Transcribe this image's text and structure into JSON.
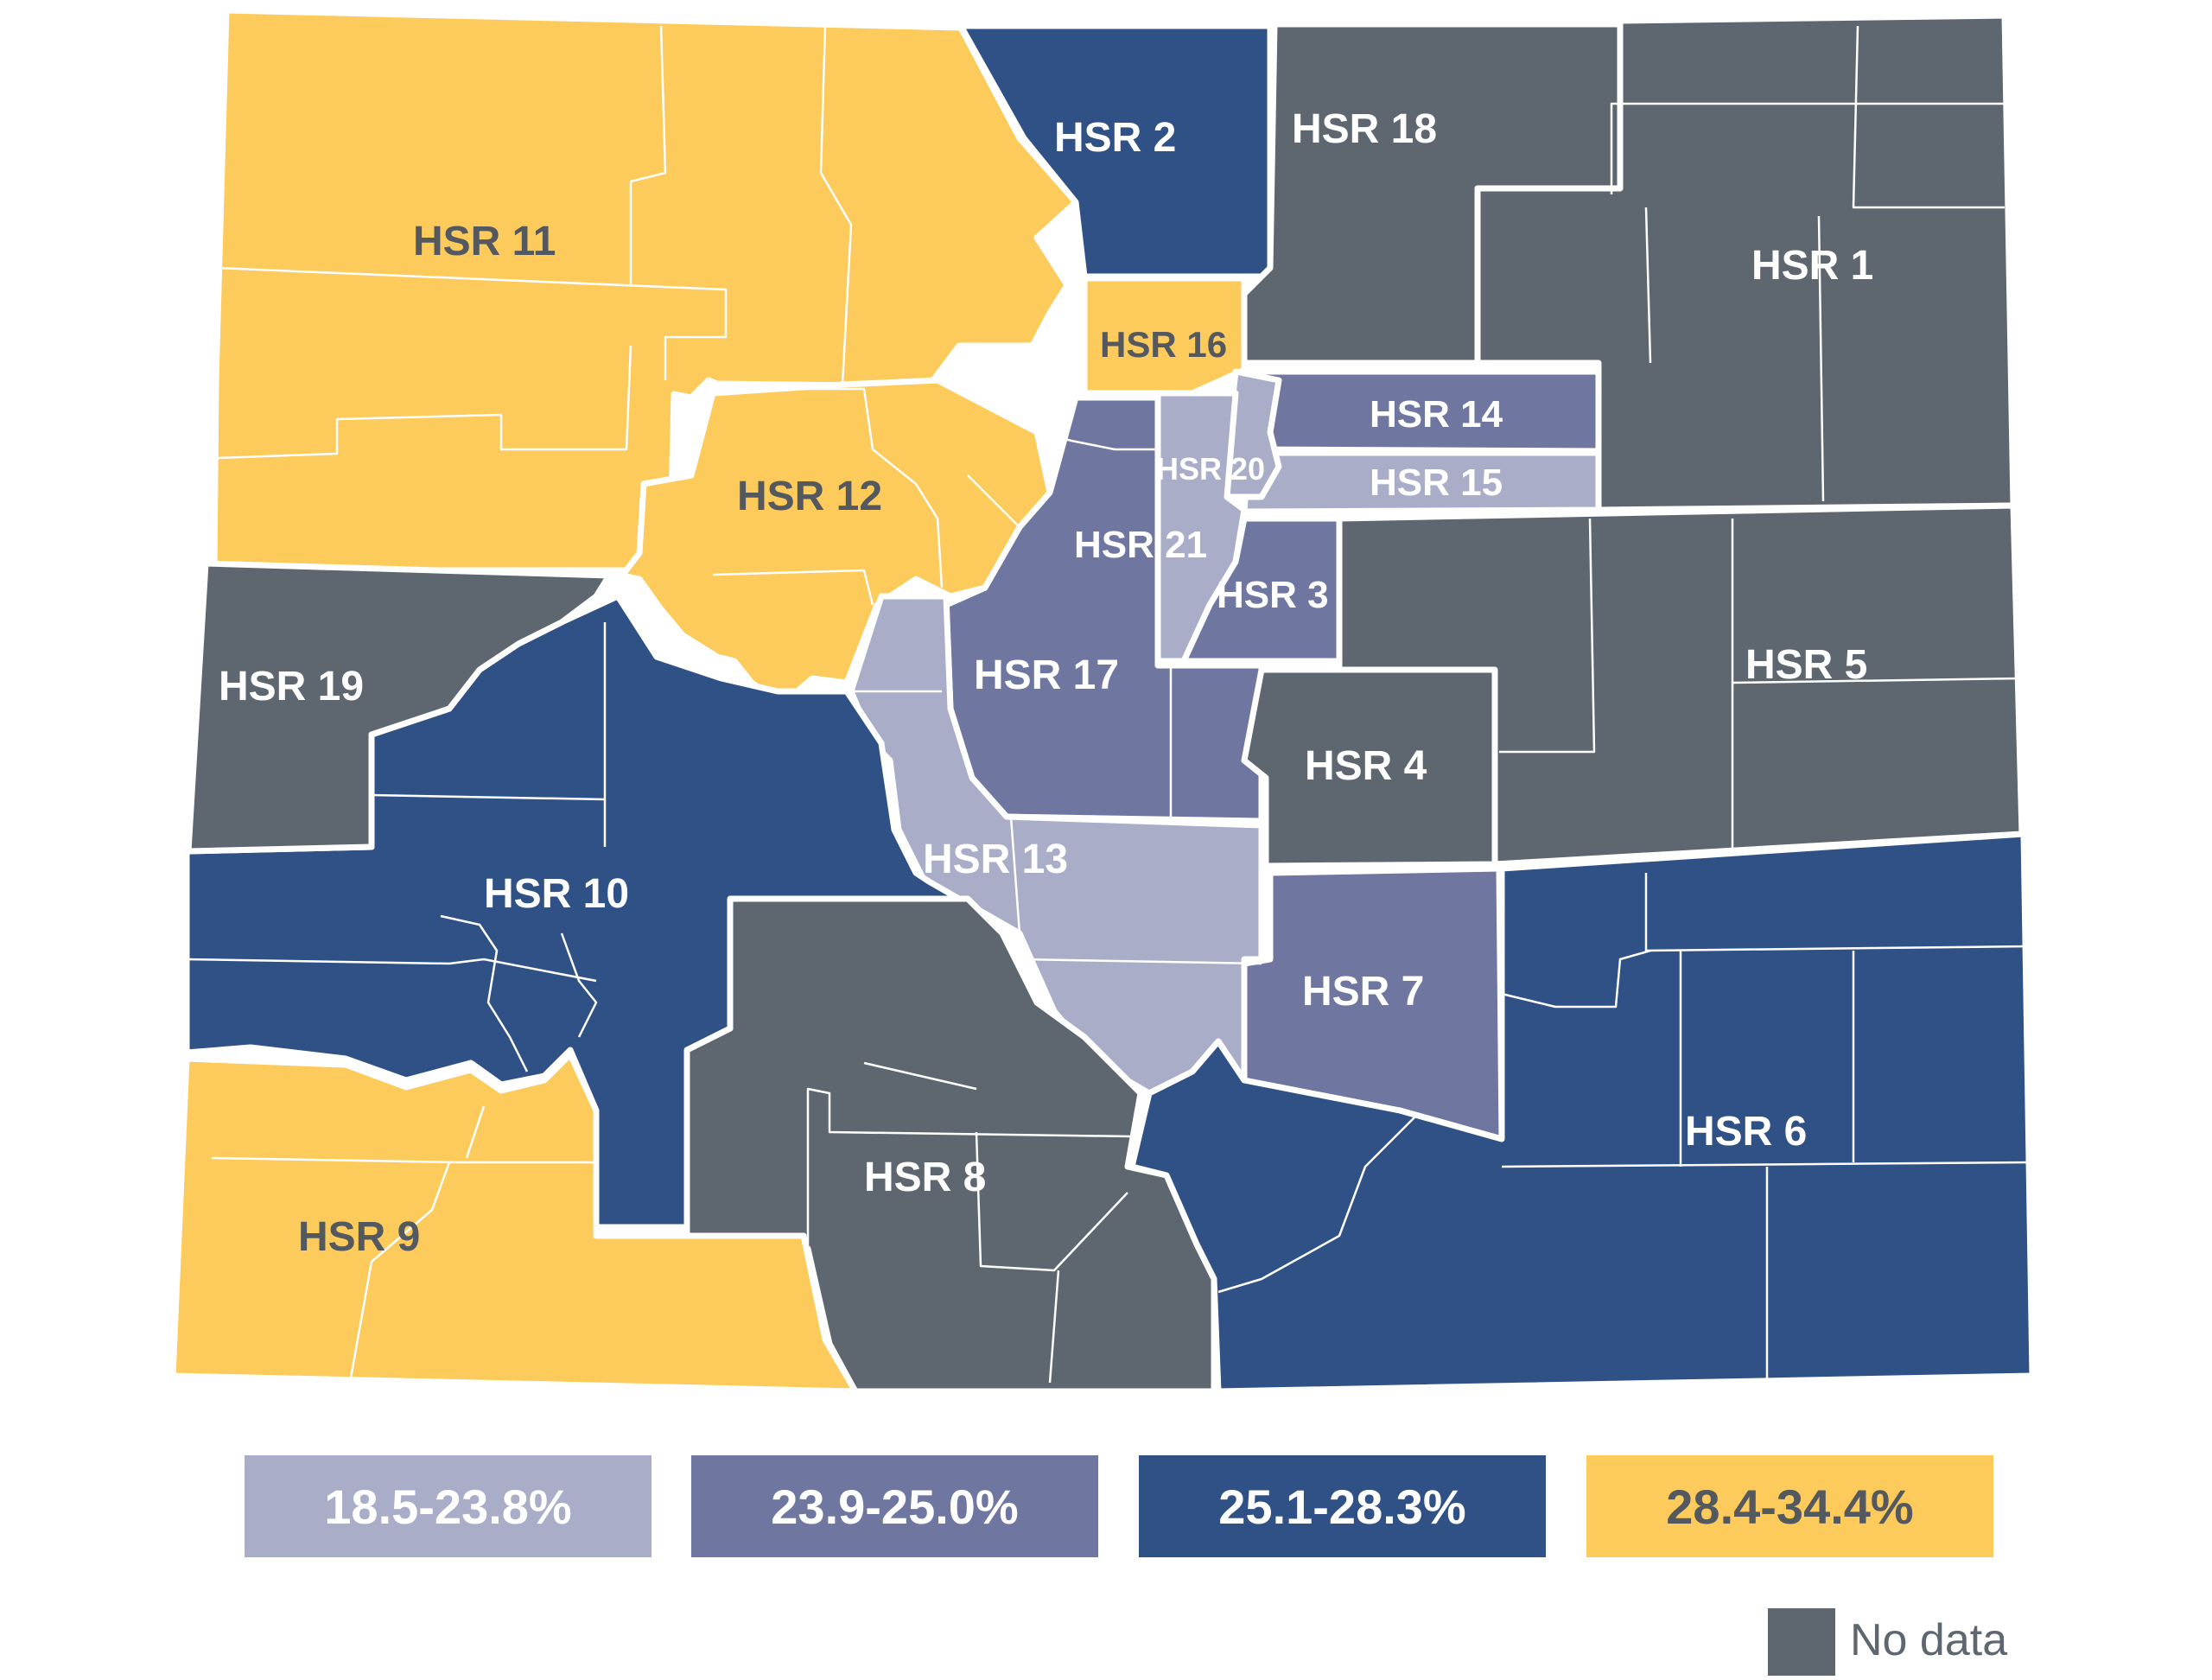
{
  "colors": {
    "light": "#a9adc8",
    "medium": "#6f77a1",
    "dark": "#2f5186",
    "yellow": "#fccb5b",
    "gray": "#5e6670",
    "label_on_dark": "#ffffff",
    "label_on_light": "#54585f"
  },
  "regions": [
    {
      "id": "HSR 1",
      "label": "HSR 1",
      "category": "no-data"
    },
    {
      "id": "HSR 2",
      "label": "HSR 2",
      "category": "25.1-28.3%"
    },
    {
      "id": "HSR 3",
      "label": "HSR 3",
      "category": "23.9-25.0%"
    },
    {
      "id": "HSR 4",
      "label": "HSR 4",
      "category": "no-data"
    },
    {
      "id": "HSR 5",
      "label": "HSR 5",
      "category": "no-data"
    },
    {
      "id": "HSR 6",
      "label": "HSR 6",
      "category": "25.1-28.3%"
    },
    {
      "id": "HSR 7",
      "label": "HSR 7",
      "category": "23.9-25.0%"
    },
    {
      "id": "HSR 8",
      "label": "HSR 8",
      "category": "no-data"
    },
    {
      "id": "HSR 9",
      "label": "HSR 9",
      "category": "28.4-34.4%"
    },
    {
      "id": "HSR 10",
      "label": "HSR 10",
      "category": "25.1-28.3%"
    },
    {
      "id": "HSR 11",
      "label": "HSR 11",
      "category": "28.4-34.4%"
    },
    {
      "id": "HSR 12",
      "label": "HSR 12",
      "category": "28.4-34.4%"
    },
    {
      "id": "HSR 13",
      "label": "HSR 13",
      "category": "18.5-23.8%"
    },
    {
      "id": "HSR 14",
      "label": "HSR 14",
      "category": "23.9-25.0%"
    },
    {
      "id": "HSR 15",
      "label": "HSR 15",
      "category": "18.5-23.8%"
    },
    {
      "id": "HSR 16",
      "label": "HSR 16",
      "category": "28.4-34.4%"
    },
    {
      "id": "HSR 17",
      "label": "HSR 17",
      "category": "23.9-25.0%"
    },
    {
      "id": "HSR 18",
      "label": "HSR 18",
      "category": "no-data"
    },
    {
      "id": "HSR 19",
      "label": "HSR 19",
      "category": "no-data"
    },
    {
      "id": "HSR 20",
      "label": "HSR 20",
      "category": "18.5-23.8%"
    },
    {
      "id": "HSR 21",
      "label": "HSR 21",
      "category": "18.5-23.8%"
    }
  ],
  "legend": {
    "items": [
      {
        "label": "18.5-23.8%",
        "color": "#a9adc8",
        "text_color": "#ffffff"
      },
      {
        "label": "23.9-25.0%",
        "color": "#6f77a1",
        "text_color": "#ffffff"
      },
      {
        "label": "25.1-28.3%",
        "color": "#2f5186",
        "text_color": "#ffffff"
      },
      {
        "label": "28.4-34.4%",
        "color": "#fccb5b",
        "text_color": "#54585f"
      }
    ],
    "no_data": {
      "label": "No data",
      "color": "#5e6670"
    }
  }
}
